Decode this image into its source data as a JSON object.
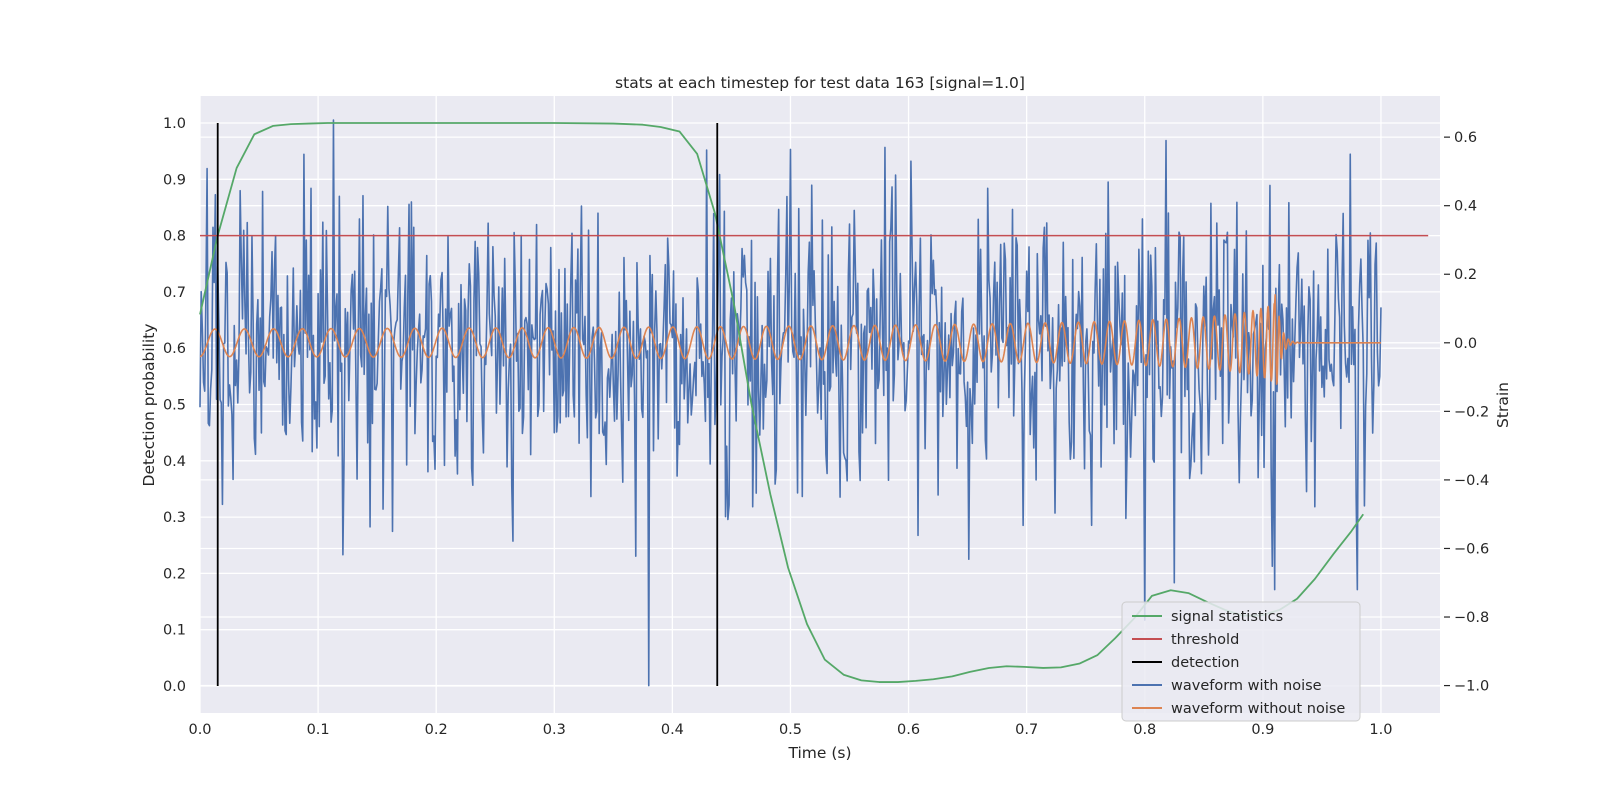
{
  "chart_data": {
    "type": "line",
    "title": "stats at each timestep for test data 163 [signal=1.0]",
    "xlabel": "Time (s)",
    "ylabel": "Detection probability",
    "ylabel_right": "Strain",
    "xlim": [
      0.0,
      1.05
    ],
    "ylim": [
      -0.048,
      1.048
    ],
    "ylim_right": [
      -1.08,
      0.72
    ],
    "xticks": [
      "0.0",
      "0.1",
      "0.2",
      "0.3",
      "0.4",
      "0.5",
      "0.6",
      "0.7",
      "0.8",
      "0.9",
      "1.0"
    ],
    "yticks": [
      "0.0",
      "0.1",
      "0.2",
      "0.3",
      "0.4",
      "0.5",
      "0.6",
      "0.7",
      "0.8",
      "0.9",
      "1.0"
    ],
    "yticks_right": [
      "−1.0",
      "−0.8",
      "−0.6",
      "−0.4",
      "−0.2",
      "0.0",
      "0.2",
      "0.4",
      "0.6"
    ],
    "grid": true,
    "legend_position": "lower-right",
    "series": [
      {
        "name": "signal statistics",
        "color": "#55a868",
        "axis": "left",
        "x": [
          0.0,
          0.015,
          0.031,
          0.046,
          0.062,
          0.077,
          0.092,
          0.108,
          0.2,
          0.3,
          0.35,
          0.375,
          0.39,
          0.406,
          0.421,
          0.436,
          0.452,
          0.467,
          0.483,
          0.498,
          0.514,
          0.529,
          0.545,
          0.56,
          0.575,
          0.591,
          0.606,
          0.621,
          0.637,
          0.652,
          0.668,
          0.683,
          0.698,
          0.714,
          0.729,
          0.745,
          0.76,
          0.775,
          0.791,
          0.806,
          0.822,
          0.837,
          0.852,
          0.868,
          0.883,
          0.898,
          0.914,
          0.929,
          0.944,
          0.96,
          0.975,
          0.985
        ],
        "values": [
          0.66,
          0.8,
          0.92,
          0.98,
          0.995,
          0.998,
          0.999,
          1.0,
          1.0,
          1.0,
          0.999,
          0.997,
          0.993,
          0.985,
          0.945,
          0.84,
          0.68,
          0.5,
          0.34,
          0.21,
          0.11,
          0.047,
          0.02,
          0.01,
          0.007,
          0.007,
          0.009,
          0.012,
          0.017,
          0.025,
          0.032,
          0.035,
          0.034,
          0.032,
          0.033,
          0.04,
          0.055,
          0.085,
          0.12,
          0.16,
          0.17,
          0.165,
          0.15,
          0.135,
          0.125,
          0.125,
          0.135,
          0.155,
          0.19,
          0.235,
          0.275,
          0.305
        ]
      },
      {
        "name": "threshold",
        "color": "#c44e52",
        "axis": "left",
        "x": [
          0.0,
          1.04
        ],
        "values": [
          0.8,
          0.8
        ]
      },
      {
        "name": "detection",
        "color": "#000000",
        "axis": "left",
        "segments": [
          {
            "x": 0.015,
            "y0": 0.0,
            "y1": 1.0
          },
          {
            "x": 0.438,
            "y0": 0.0,
            "y1": 1.0
          }
        ]
      },
      {
        "name": "waveform with noise",
        "color": "#4c72b0",
        "axis": "right",
        "x_range": [
          0.0,
          1.0
        ],
        "n_points": 1001,
        "std": 0.2,
        "notable_extremes": [
          {
            "x": 0.113,
            "y": 0.65
          },
          {
            "x": 0.38,
            "y": -1.0
          },
          {
            "x": 0.088,
            "y": 0.55
          },
          {
            "x": 0.58,
            "y": 0.57
          },
          {
            "x": 0.163,
            "y": -0.55
          },
          {
            "x": 0.825,
            "y": -0.7
          },
          {
            "x": 0.91,
            "y": -0.72
          },
          {
            "x": 0.98,
            "y": -0.72
          }
        ]
      },
      {
        "name": "waveform without noise",
        "color": "#dd8452",
        "axis": "right",
        "x_range": [
          0.0,
          1.0
        ],
        "description_values": {
          "start_amplitude": 0.04,
          "peak_amplitude": 0.2,
          "start_frequency_hz": 18,
          "merger_time": 0.91,
          "post_merger_amplitude": 0.0
        }
      }
    ]
  }
}
